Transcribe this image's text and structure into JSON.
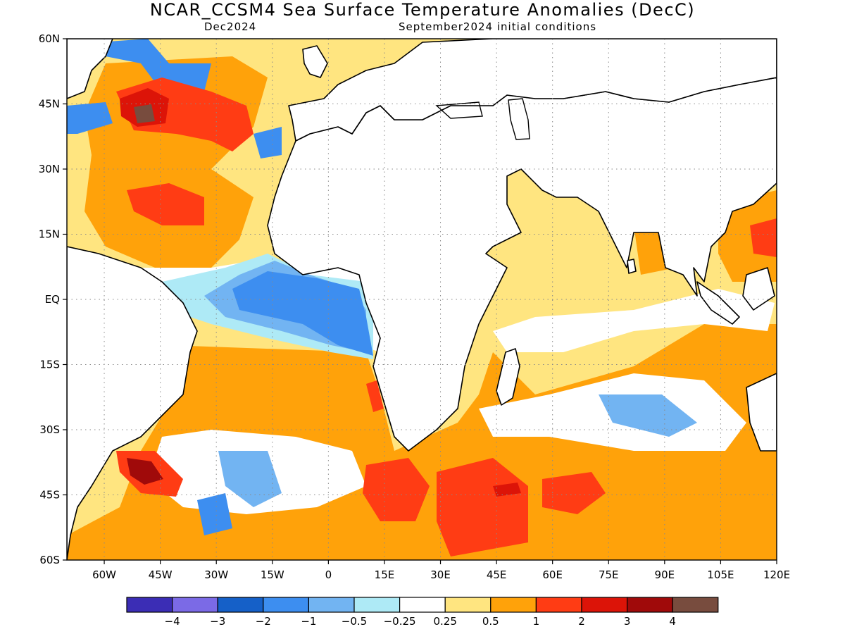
{
  "title": "NCAR_CCSM4 Sea Surface Temperature Anomalies (DecC)",
  "subtitle_left": "Dec2024",
  "subtitle_right": "September2024 initial conditions",
  "map": {
    "lon_range": [
      -70,
      120
    ],
    "lat_range": [
      -60,
      60
    ],
    "lon_ticks": [
      "60W",
      "45W",
      "30W",
      "15W",
      "0",
      "15E",
      "30E",
      "45E",
      "60E",
      "75E",
      "90E",
      "105E",
      "120E"
    ],
    "lat_ticks": [
      "60N",
      "45N",
      "30N",
      "15N",
      "EQ",
      "15S",
      "30S",
      "45S",
      "60S"
    ],
    "gridlines": "dotted",
    "land_color": "#ffffff",
    "coastline_color": "#000000"
  },
  "legend": {
    "placement": "bottom",
    "colors": [
      "#3b2db5",
      "#7b6ae6",
      "#1560c8",
      "#3d8ef0",
      "#72b4f2",
      "#aeeaf6",
      "#ffffff",
      "#ffe580",
      "#ffa20a",
      "#ff3c14",
      "#dc1408",
      "#a00a0a",
      "#784c3e"
    ],
    "labels": [
      "-4",
      "-3",
      "-2",
      "-1",
      "-0.5",
      "-0.25",
      "0.25",
      "0.5",
      "1",
      "2",
      "3",
      "4"
    ]
  }
}
